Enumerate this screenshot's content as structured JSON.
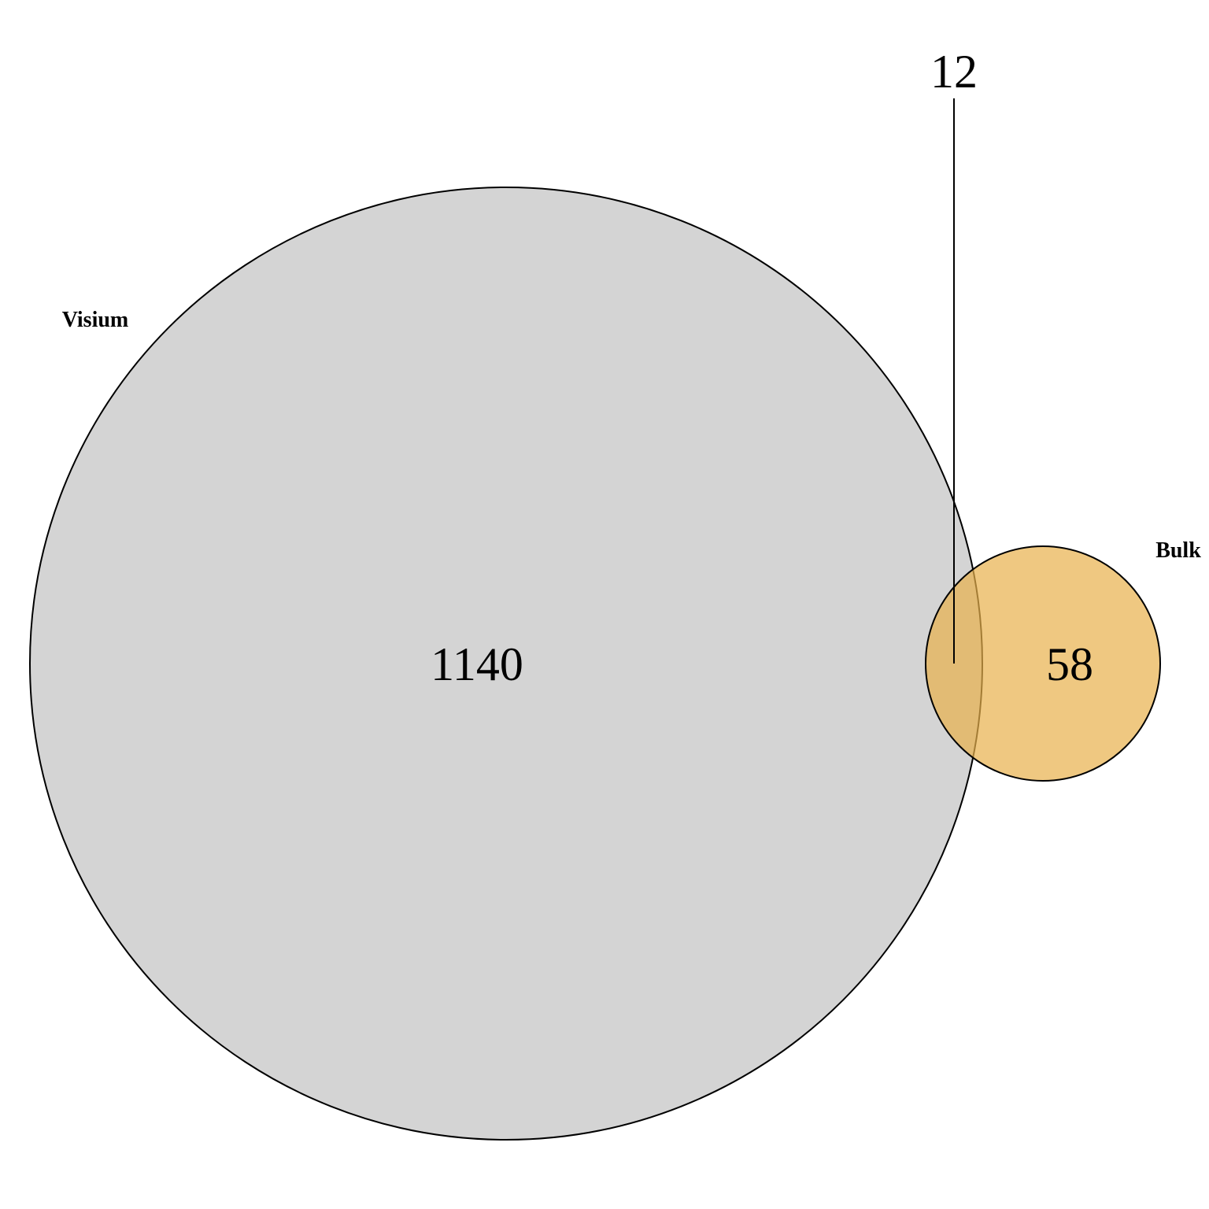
{
  "diagram": {
    "type": "venn-2",
    "sets": [
      {
        "id": "visium",
        "label": "Visium",
        "fill_color": "#c2c2c2"
      },
      {
        "id": "bulk",
        "label": "Bulk",
        "fill_color": "#e8b04c"
      }
    ],
    "regions": {
      "visium_only": "1140",
      "bulk_only": "58",
      "intersection": "12"
    },
    "fill_opacity": 0.7,
    "stroke_color": "#000000"
  }
}
